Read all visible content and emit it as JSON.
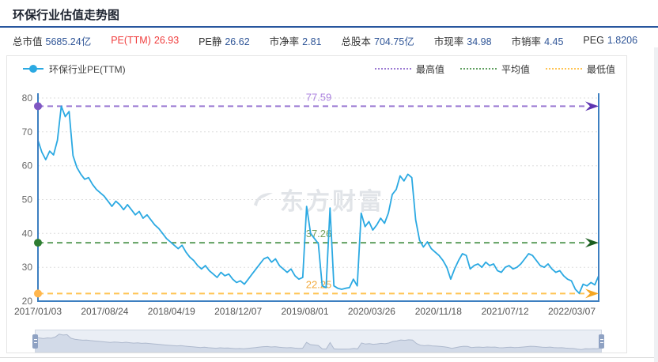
{
  "header": {
    "title": "环保行业估值走势图"
  },
  "stats": {
    "items": [
      {
        "label": "总市值",
        "value": "5685.24亿"
      },
      {
        "label": "PE(TTM)",
        "value": "26.93"
      },
      {
        "label": "PE静",
        "value": "26.62"
      },
      {
        "label": "市净率",
        "value": "2.81"
      },
      {
        "label": "总股本",
        "value": "704.75亿"
      },
      {
        "label": "市现率",
        "value": "34.98"
      },
      {
        "label": "市销率",
        "value": "4.45"
      },
      {
        "label": "PEG",
        "value": "1.8206"
      }
    ]
  },
  "legend": {
    "series_label": "环保行业PE(TTM)"
  },
  "watermark": "东方财富",
  "colors": {
    "series": "#2BA9E2",
    "axis": "#3D7FC1",
    "grid": "#dddddd",
    "header_rule": "#27569e",
    "stat_value": "#2F5597",
    "stat_highlight": "#F03E3E",
    "slider_fill": "#D2DAE8",
    "slider_stroke": "#AEB9CD"
  },
  "chart_data": {
    "type": "line",
    "title": "环保行业估值走势图",
    "series_name": "环保行业PE(TTM)",
    "xlabel": "",
    "ylabel": "PE(TTM)",
    "ylim": [
      20,
      80
    ],
    "y_ticks": [
      20,
      30,
      40,
      50,
      60,
      70,
      80
    ],
    "x_labels": [
      "2017/01/03",
      "2017/08/24",
      "2018/04/19",
      "2018/12/07",
      "2019/08/01",
      "2020/03/26",
      "2020/11/18",
      "2021/07/12",
      "2022/03/07"
    ],
    "grid": true,
    "legend_position": "top",
    "ref_lines": [
      {
        "id": "max",
        "legend": "最高值",
        "value": 77.59,
        "label": "77.59",
        "line_color": "#9B79D2",
        "dot_color": "#7E57C2",
        "arrow_color": "#5E35B1",
        "text_color": "#AB82DF"
      },
      {
        "id": "avg",
        "legend": "平均值",
        "value": 37.26,
        "label": "37.26",
        "line_color": "#61A061",
        "dot_color": "#2E7D32",
        "arrow_color": "#1B5E20",
        "text_color": "#76A05C"
      },
      {
        "id": "min",
        "legend": "最低值",
        "value": 22.25,
        "label": "22.25",
        "line_color": "#FFC453",
        "dot_color": "#FFB64D",
        "arrow_color": "#F5A623",
        "text_color": "#F2A93B"
      }
    ],
    "values": [
      67.5,
      64,
      61.8,
      64.3,
      63.2,
      67.5,
      77.59,
      74.5,
      76,
      63,
      59.5,
      57.5,
      56,
      56.5,
      54.5,
      53,
      52,
      51,
      49.5,
      48,
      49.5,
      48.5,
      47,
      48.5,
      47,
      45.5,
      46.5,
      44.5,
      45.5,
      44,
      42.5,
      41.5,
      40,
      38.5,
      37.5,
      36.5,
      35.5,
      36.5,
      34.5,
      33,
      32,
      30.5,
      29.5,
      30.5,
      29,
      28,
      27,
      28.5,
      27.5,
      28,
      26.5,
      25.5,
      26,
      25,
      26.5,
      28,
      29.5,
      31,
      32.5,
      33,
      31.5,
      32.5,
      30.5,
      29.5,
      28.5,
      29.5,
      27.5,
      26.5,
      27,
      48,
      40,
      38.5,
      37,
      24.5,
      24,
      47.5,
      24.5,
      23.8,
      23.5,
      23.8,
      24,
      26.5,
      24.5,
      46,
      42,
      43.5,
      41,
      42.5,
      44.5,
      43,
      46,
      51.5,
      53,
      57,
      55.5,
      57.5,
      56.5,
      44,
      38,
      36,
      37.5,
      35.5,
      34.5,
      33.5,
      32,
      30,
      26.5,
      29.5,
      32,
      34,
      33.5,
      29.5,
      30.5,
      31,
      30,
      31.5,
      30.5,
      31,
      29,
      28.5,
      30,
      30.5,
      29.5,
      30,
      31,
      32.5,
      34,
      33.5,
      32,
      30.5,
      30,
      31,
      29.5,
      28.5,
      29,
      27.5,
      26.5,
      26,
      23.5,
      22.3,
      25,
      24.5,
      25.5,
      24.8,
      27.5
    ]
  }
}
